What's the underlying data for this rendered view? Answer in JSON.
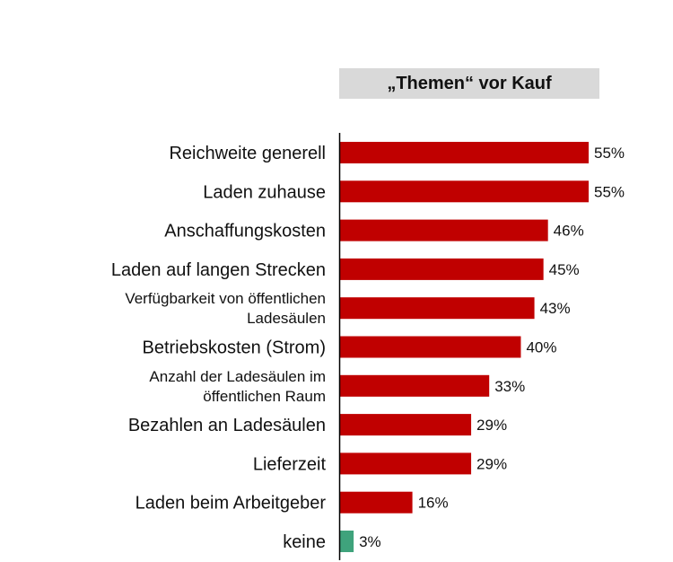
{
  "chart_data": {
    "type": "bar",
    "orientation": "horizontal",
    "title": "„Themen“ vor Kauf",
    "categories": [
      [
        "Reichweite generell"
      ],
      [
        "Laden zuhause"
      ],
      [
        "Anschaffungskosten"
      ],
      [
        "Laden auf langen Strecken"
      ],
      [
        "Verfügbarkeit von öffentlichen",
        "Ladesäulen"
      ],
      [
        "Betriebskosten (Strom)"
      ],
      [
        "Anzahl der Ladesäulen im",
        "öffentlichen Raum"
      ],
      [
        "Bezahlen an Ladesäulen"
      ],
      [
        "Lieferzeit"
      ],
      [
        "Laden beim Arbeitgeber"
      ],
      [
        "keine"
      ]
    ],
    "values": [
      55,
      55,
      46,
      45,
      43,
      40,
      33,
      29,
      29,
      16,
      3
    ],
    "value_labels": [
      "55%",
      "55%",
      "46%",
      "45%",
      "43%",
      "40%",
      "33%",
      "29%",
      "29%",
      "16%",
      "3%"
    ],
    "xlim": [
      0,
      100
    ],
    "grid": false,
    "legend": "none",
    "colors": {
      "bar_default": "#c00000",
      "bar_highlight": "#3fa37c",
      "title_background": "#d9d9d9",
      "axis": "#000000"
    },
    "highlight_index": 10
  }
}
